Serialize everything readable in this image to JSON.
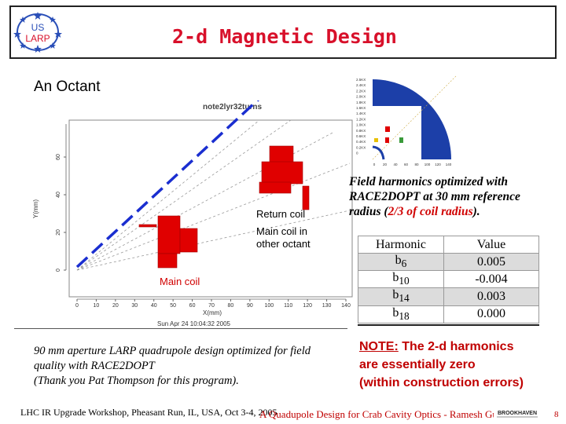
{
  "slide": {
    "title": "2-d Magnetic Design",
    "logo_text": [
      "US",
      "LARP"
    ]
  },
  "plot": {
    "section_label": "An Octant",
    "plot_title": "note2lyr32turns",
    "x_axis_label": "X(mm)",
    "y_axis_label": "Y(mm)",
    "timestamp": "Sun Apr 24 10:04:32 2005",
    "x_ticks": [
      "0",
      "10",
      "20",
      "30",
      "40",
      "50",
      "60",
      "70",
      "80",
      "90",
      "100",
      "110",
      "120",
      "130",
      "140"
    ],
    "y_ticks": [
      "0",
      "20",
      "40",
      "60"
    ],
    "labels": {
      "return_coil": "Return coil",
      "main_coil_other_line1": "Main coil in",
      "main_coil_other_line2": "other octant",
      "main_coil": "Main coil"
    },
    "colors": {
      "coil_red": "#e00000",
      "dashed_line_blue": "#1a2ed0",
      "label_red": "#d00000"
    }
  },
  "inset": {
    "legend_values": [
      "2.5KX",
      "2.4KX",
      "2.2KX",
      "2.0KX",
      "1.8KX",
      "1.6KX",
      "1.4KX",
      "1.2KX",
      "1.0KX",
      "0.8KX",
      "0.6KX",
      "0.4KX",
      "0.2KX",
      "0"
    ],
    "colors": {
      "field_blue": "#1c3fa8"
    }
  },
  "field_text": {
    "line1": "Field harmonics optimized with",
    "line2": "RACE2DOPT at 30 mm reference",
    "line3_prefix": "radius (",
    "line3_red": "2/3 of coil radius",
    "line3_suffix": ")."
  },
  "harmonics_table": {
    "headers": [
      "Harmonic",
      "Value"
    ],
    "rows": [
      {
        "harmonic": "b",
        "sub": "6",
        "value": "0.005"
      },
      {
        "harmonic": "b",
        "sub": "10",
        "value": "-0.004"
      },
      {
        "harmonic": "b",
        "sub": "14",
        "value": "0.003"
      },
      {
        "harmonic": "b",
        "sub": "18",
        "value": "0.000"
      }
    ]
  },
  "caption": {
    "line1": "90 mm aperture LARP quadrupole design optimized for field",
    "line2": "quality with RACE2DOPT",
    "line3": "(Thank you Pat Thompson for this program)."
  },
  "note": {
    "label": "NOTE:",
    "line1_rest": " The 2-d harmonics",
    "line2": "are essentially zero",
    "line3": "(within construction errors)"
  },
  "footer": {
    "left": "LHC IR Upgrade Workshop, Pheasant Run, IL, USA,  Oct 3-4, 2005",
    "center": "A Quadupole Design for Crab Cavity Optics - Ramesh Gupta",
    "logo_text": "BROOKHAVEN",
    "page_number": "8"
  }
}
